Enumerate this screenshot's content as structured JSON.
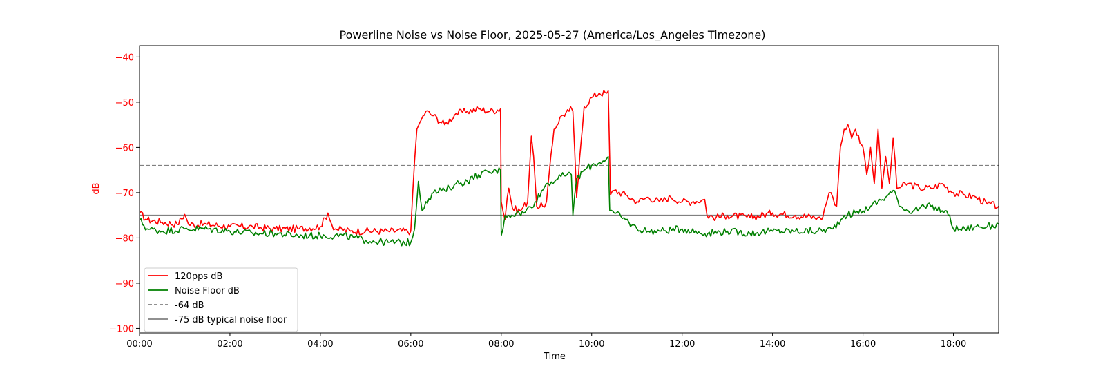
{
  "chart_data": {
    "type": "line",
    "title": "Powerline Noise vs Noise Floor, 2025-05-27 (America/Los_Angeles Timezone)",
    "xlabel": "Time",
    "ylabel": "dB",
    "ylabel_color": "#ff0000",
    "ytick_color": "#ff0000",
    "xlim": [
      "00:00",
      "19:00"
    ],
    "ylim": [
      -101,
      -37.5
    ],
    "xticks": [
      "00:00",
      "02:00",
      "04:00",
      "06:00",
      "08:00",
      "10:00",
      "12:00",
      "14:00",
      "16:00",
      "18:00"
    ],
    "yticks": [
      -40,
      -50,
      -60,
      -70,
      -80,
      -90,
      -100
    ],
    "grid": false,
    "legend_position": "lower-left",
    "series": [
      {
        "name": "120pps dB",
        "color": "#ff0000",
        "style": "solid",
        "x": [
          "00:00",
          "00:10",
          "00:30",
          "00:50",
          "01:00",
          "01:05",
          "01:30",
          "02:00",
          "02:30",
          "03:00",
          "03:30",
          "04:00",
          "04:10",
          "04:15",
          "04:20",
          "04:40",
          "05:00",
          "05:30",
          "06:00",
          "06:05",
          "06:08",
          "06:12",
          "06:20",
          "06:30",
          "06:45",
          "07:00",
          "07:15",
          "07:30",
          "07:45",
          "07:59",
          "08:00",
          "08:05",
          "08:08",
          "08:10",
          "08:15",
          "08:25",
          "08:35",
          "08:40",
          "08:43",
          "08:47",
          "08:55",
          "09:00",
          "09:10",
          "09:20",
          "09:30",
          "09:32",
          "09:35",
          "09:40",
          "09:50",
          "10:00",
          "10:10",
          "10:20",
          "10:22",
          "10:25",
          "10:30",
          "10:45",
          "11:00",
          "11:15",
          "11:30",
          "11:45",
          "12:00",
          "12:15",
          "12:30",
          "12:33",
          "12:45",
          "13:00",
          "13:30",
          "14:00",
          "14:30",
          "15:00",
          "15:05",
          "15:15",
          "15:20",
          "15:25",
          "15:30",
          "15:35",
          "15:40",
          "15:45",
          "15:50",
          "16:00",
          "16:05",
          "16:10",
          "16:15",
          "16:20",
          "16:25",
          "16:30",
          "16:35",
          "16:40",
          "16:45",
          "17:00",
          "17:15",
          "17:30",
          "17:45",
          "18:00",
          "18:15",
          "18:30",
          "18:45",
          "19:00"
        ],
        "values": [
          -74.5,
          -76,
          -76.5,
          -77,
          -74.8,
          -77,
          -77,
          -77.5,
          -77.5,
          -78,
          -78,
          -77.5,
          -74.5,
          -77,
          -78,
          -78.5,
          -78.5,
          -78.5,
          -78.5,
          -63,
          -56,
          -54.5,
          -52,
          -53,
          -55,
          -52.5,
          -52,
          -51.5,
          -52,
          -51.5,
          -72,
          -76,
          -71,
          -69,
          -73.5,
          -74,
          -72,
          -57.5,
          -62,
          -73,
          -73,
          -72,
          -56,
          -53,
          -52,
          -51,
          -52,
          -71,
          -51,
          -49,
          -48,
          -48,
          -47.5,
          -70.5,
          -69.5,
          -70.5,
          -72,
          -71,
          -72,
          -71,
          -72,
          -72,
          -71.5,
          -75,
          -75.5,
          -75,
          -75.5,
          -74.5,
          -75,
          -75.5,
          -76,
          -70,
          -71,
          -73,
          -60,
          -56,
          -55,
          -58,
          -56,
          -60,
          -66,
          -60,
          -68,
          -56,
          -69,
          -62,
          -68,
          -58,
          -69,
          -68,
          -69,
          -69,
          -68,
          -70,
          -70.5,
          -71,
          -72.5,
          -73
        ]
      },
      {
        "name": "Noise Floor dB",
        "color": "#008000",
        "style": "solid",
        "x": [
          "00:00",
          "00:10",
          "00:30",
          "01:00",
          "01:30",
          "02:00",
          "02:30",
          "03:00",
          "03:30",
          "04:00",
          "04:30",
          "05:00",
          "05:30",
          "06:00",
          "06:05",
          "06:10",
          "06:15",
          "06:20",
          "06:30",
          "06:45",
          "07:00",
          "07:15",
          "07:30",
          "07:45",
          "07:59",
          "08:00",
          "08:05",
          "08:10",
          "08:20",
          "08:30",
          "08:45",
          "09:00",
          "09:15",
          "09:30",
          "09:33",
          "09:35",
          "09:40",
          "09:50",
          "10:00",
          "10:15",
          "10:22",
          "10:24",
          "10:30",
          "10:45",
          "11:00",
          "11:15",
          "11:30",
          "12:00",
          "12:30",
          "13:00",
          "13:30",
          "14:00",
          "14:30",
          "15:00",
          "15:20",
          "15:35",
          "15:50",
          "16:00",
          "16:10",
          "16:20",
          "16:30",
          "16:40",
          "16:50",
          "17:00",
          "17:15",
          "17:30",
          "17:45",
          "17:55",
          "18:00",
          "18:15",
          "18:30",
          "18:45",
          "19:00"
        ],
        "values": [
          -76,
          -78,
          -78.5,
          -78,
          -78,
          -78.5,
          -79,
          -79,
          -79.5,
          -79.5,
          -79.5,
          -80.5,
          -81,
          -81,
          -78,
          -67.5,
          -74,
          -72,
          -70,
          -69.5,
          -68,
          -67.5,
          -66,
          -65.5,
          -65,
          -79.5,
          -75,
          -75,
          -74.5,
          -74.5,
          -72,
          -68,
          -67,
          -65.5,
          -66,
          -75,
          -67,
          -65,
          -64,
          -63,
          -62,
          -74,
          -74.5,
          -76,
          -78,
          -78.5,
          -78.5,
          -78,
          -79,
          -78.5,
          -79,
          -78.5,
          -78.5,
          -78.5,
          -78,
          -75,
          -74.5,
          -74,
          -73,
          -72,
          -71,
          -69.5,
          -73,
          -74,
          -73.5,
          -73,
          -74,
          -75,
          -78,
          -78,
          -77.5,
          -77.5,
          -77
        ]
      }
    ],
    "reference_lines": [
      {
        "name": "-64 dB",
        "y": -64,
        "color": "#808080",
        "style": "dashed"
      },
      {
        "name": "-75 dB typical noise floor",
        "y": -75,
        "color": "#808080",
        "style": "solid"
      }
    ]
  }
}
